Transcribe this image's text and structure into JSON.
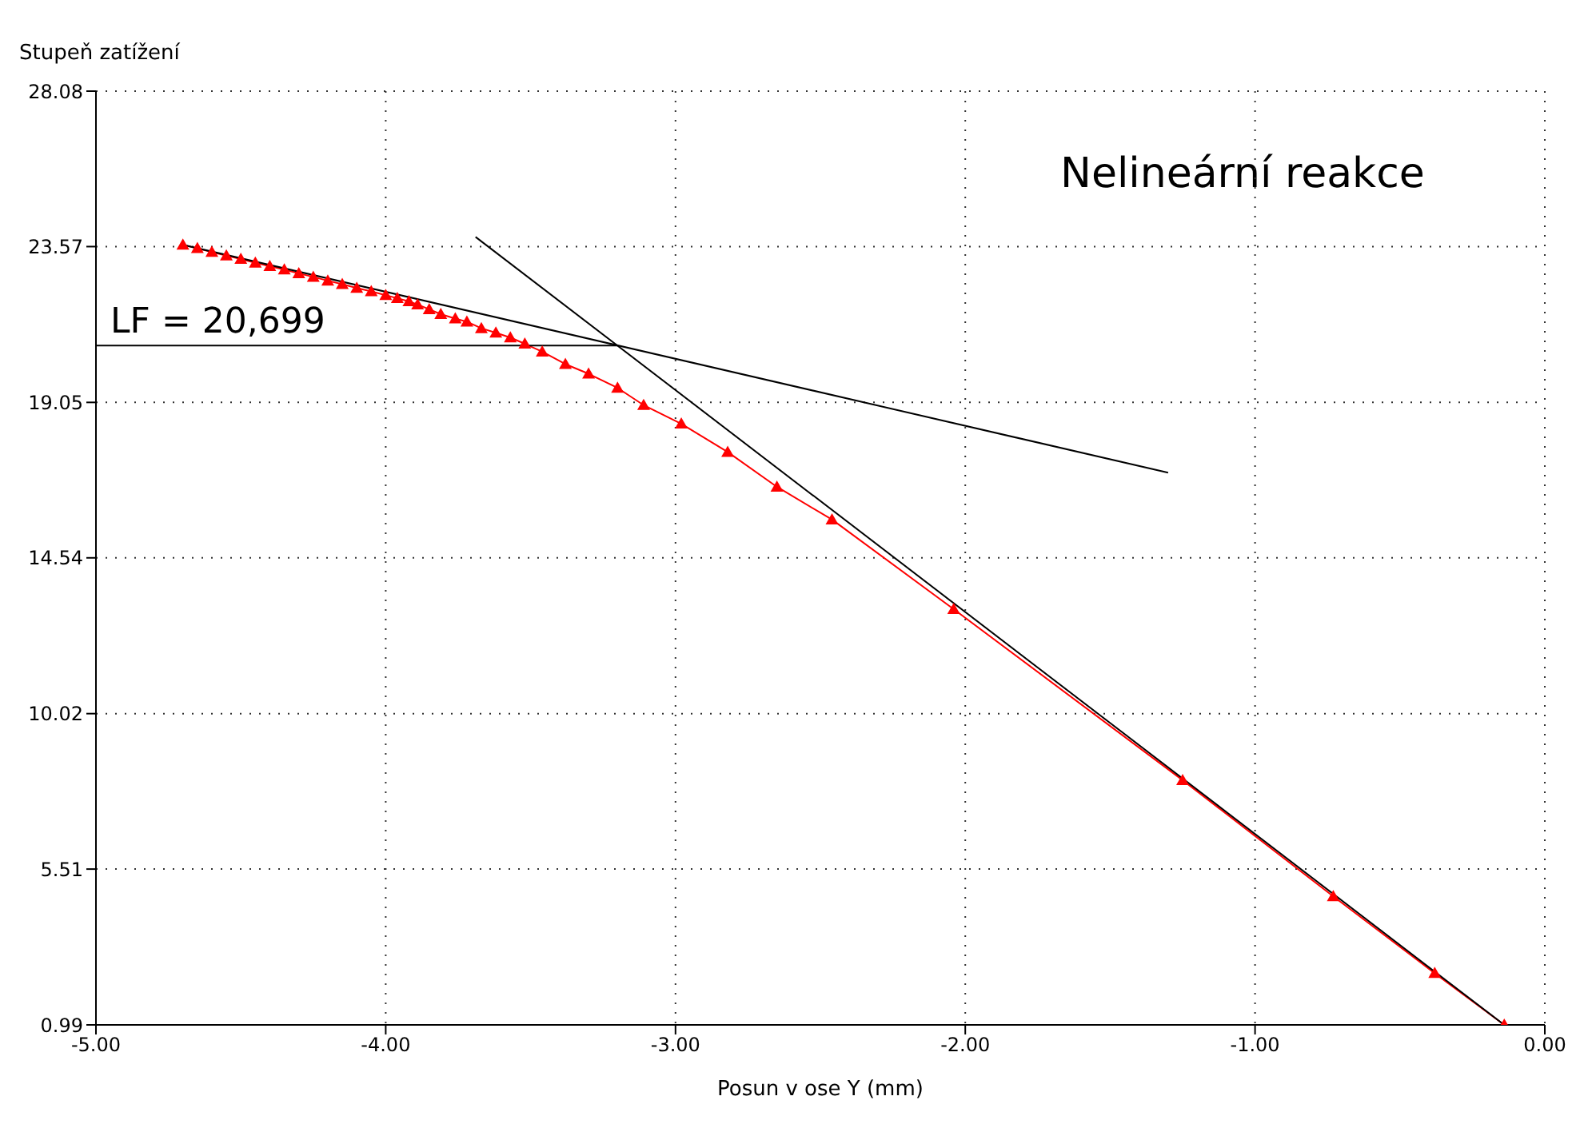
{
  "chart_data": {
    "type": "line",
    "xlabel": "Posun v ose Y (mm)",
    "ylabel": "Stupeň zatížení",
    "annotations": [
      "Nelineární reakce",
      {
        "text": "LF = 20,699",
        "x": -4.95,
        "y": 20.699
      }
    ],
    "xlim": [
      -5,
      0
    ],
    "xticks": [
      {
        "value": -5,
        "label": "-5.00"
      },
      {
        "value": -4,
        "label": "-4.00"
      },
      {
        "value": -3,
        "label": "-3.00"
      },
      {
        "value": -2,
        "label": "-2.00"
      },
      {
        "value": -1,
        "label": "-1.00"
      },
      {
        "value": 0,
        "label": "0.00"
      }
    ],
    "ylim": [
      0.99,
      28.08
    ],
    "yticks": [
      0.99,
      5.51,
      10.02,
      14.54,
      19.05,
      23.57,
      28.08
    ],
    "grid": true,
    "line_style": "solid",
    "series": [
      {
        "color": "#ff0000",
        "marker": "triangle",
        "x": [
          -0.14,
          -0.38,
          -0.73,
          -1.25,
          -2.04,
          -2.46,
          -2.65,
          -2.82,
          -2.98,
          -3.11,
          -3.2,
          -3.3,
          -3.38,
          -3.46,
          -3.52,
          -3.57,
          -3.62,
          -3.67,
          -3.72,
          -3.76,
          -3.81,
          -3.85,
          -3.89,
          -3.92,
          -3.96,
          -4.0,
          -4.05,
          -4.1,
          -4.15,
          -4.2,
          -4.25,
          -4.3,
          -4.35,
          -4.4,
          -4.45,
          -4.5,
          -4.55,
          -4.6,
          -4.65,
          -4.7
        ],
        "values": [
          0.99,
          2.49,
          4.72,
          8.09,
          13.05,
          15.65,
          16.6,
          17.61,
          18.43,
          18.97,
          19.47,
          19.88,
          20.16,
          20.52,
          20.75,
          20.93,
          21.07,
          21.2,
          21.39,
          21.48,
          21.61,
          21.75,
          21.89,
          21.98,
          22.07,
          22.16,
          22.27,
          22.37,
          22.48,
          22.58,
          22.69,
          22.79,
          22.9,
          23.0,
          23.1,
          23.21,
          23.31,
          23.41,
          23.52,
          23.62
        ]
      },
      {
        "color": "#000000",
        "marker": "none",
        "x": [
          -4.7,
          -1.3
        ],
        "values": [
          23.62,
          17.01
        ]
      },
      {
        "color": "#000000",
        "marker": "none",
        "x": [
          -3.69,
          -0.14
        ],
        "values": [
          23.85,
          0.99
        ]
      },
      {
        "color": "#000000",
        "marker": "none",
        "x": [
          -5,
          -3.2
        ],
        "values": [
          20.699,
          20.699
        ]
      }
    ]
  }
}
